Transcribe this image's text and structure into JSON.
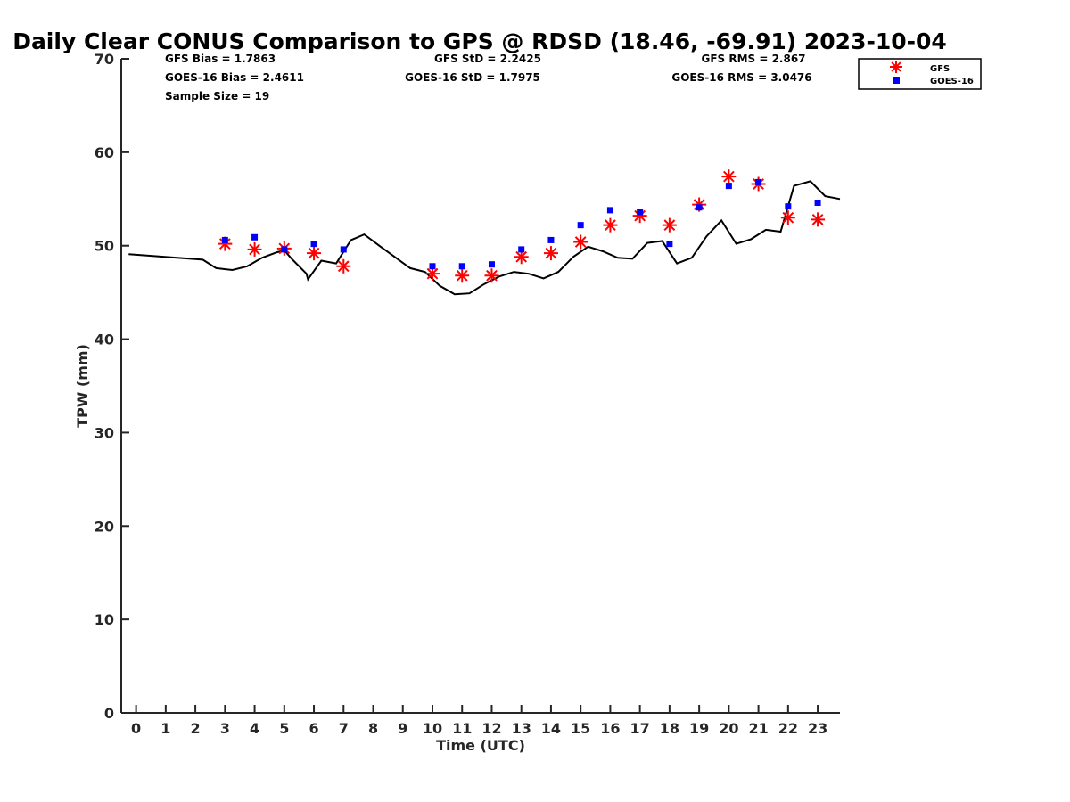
{
  "chart_data": {
    "type": "scatter",
    "title": "Daily Clear CONUS Comparison to GPS @ RDSD (18.46, -69.91) 2023-10-04",
    "xlabel": "Time (UTC)",
    "ylabel": "TPW (mm)",
    "xlim": [
      -0.5,
      23.75
    ],
    "ylim": [
      0,
      70
    ],
    "x_ticks": [
      0,
      1,
      2,
      3,
      4,
      5,
      6,
      7,
      8,
      9,
      10,
      11,
      12,
      13,
      14,
      15,
      16,
      17,
      18,
      19,
      20,
      21,
      22,
      23
    ],
    "y_ticks": [
      0,
      10,
      20,
      30,
      40,
      50,
      60,
      70
    ],
    "grid": false,
    "legend_position": "top-right",
    "stats": {
      "gfs_bias": "GFS Bias = 1.7863",
      "goes_bias": "GOES-16 Bias = 2.4611",
      "sample_size": "Sample Size = 19",
      "gfs_std": "GFS StD = 2.2425",
      "goes_std": "GOES-16 StD = 1.7975",
      "gfs_rms": "GFS RMS = 2.867",
      "goes_rms": "GOES-16 RMS = 3.0476"
    },
    "series": [
      {
        "name": "GFS",
        "marker": "asterisk",
        "color": "#ff0000",
        "points": [
          [
            3,
            50.2
          ],
          [
            4,
            49.6
          ],
          [
            5,
            49.7
          ],
          [
            6,
            49.2
          ],
          [
            7,
            47.8
          ],
          [
            10,
            47.0
          ],
          [
            11,
            46.8
          ],
          [
            12,
            46.8
          ],
          [
            13,
            48.8
          ],
          [
            14,
            49.2
          ],
          [
            15,
            50.4
          ],
          [
            16,
            52.2
          ],
          [
            17,
            53.2
          ],
          [
            18,
            52.2
          ],
          [
            19,
            54.4
          ],
          [
            20,
            57.4
          ],
          [
            21,
            56.6
          ],
          [
            22,
            53.0
          ],
          [
            23,
            52.8
          ]
        ]
      },
      {
        "name": "GOES-16",
        "marker": "square",
        "color": "#0000ff",
        "points": [
          [
            3,
            50.6
          ],
          [
            4,
            50.9
          ],
          [
            5,
            49.6
          ],
          [
            6,
            50.2
          ],
          [
            7,
            49.6
          ],
          [
            10,
            47.8
          ],
          [
            11,
            47.8
          ],
          [
            12,
            48.0
          ],
          [
            13,
            49.6
          ],
          [
            14,
            50.6
          ],
          [
            15,
            52.2
          ],
          [
            16,
            53.8
          ],
          [
            17,
            53.6
          ],
          [
            18,
            50.2
          ],
          [
            19,
            54.1
          ],
          [
            20,
            56.4
          ],
          [
            21,
            56.8
          ],
          [
            22,
            54.2
          ],
          [
            23,
            54.6
          ]
        ]
      },
      {
        "marker": "line",
        "color": "#000000",
        "points": [
          [
            -0.25,
            49.1
          ],
          [
            2.25,
            48.5
          ],
          [
            2.7,
            47.6
          ],
          [
            3.25,
            47.4
          ],
          [
            3.75,
            47.8
          ],
          [
            4.25,
            48.7
          ],
          [
            4.75,
            49.3
          ],
          [
            5.0,
            49.5
          ],
          [
            5.25,
            48.6
          ],
          [
            5.75,
            47.0
          ],
          [
            5.8,
            46.4
          ],
          [
            6.25,
            48.4
          ],
          [
            6.75,
            48.1
          ],
          [
            7.25,
            50.6
          ],
          [
            7.7,
            51.2
          ],
          [
            8.25,
            49.9
          ],
          [
            9.25,
            47.6
          ],
          [
            9.75,
            47.2
          ],
          [
            10.25,
            45.7
          ],
          [
            10.75,
            44.8
          ],
          [
            11.25,
            44.9
          ],
          [
            11.75,
            45.9
          ],
          [
            12.25,
            46.7
          ],
          [
            12.75,
            47.2
          ],
          [
            13.25,
            47.0
          ],
          [
            13.75,
            46.5
          ],
          [
            14.25,
            47.2
          ],
          [
            14.75,
            48.8
          ],
          [
            15.25,
            49.9
          ],
          [
            15.75,
            49.4
          ],
          [
            16.25,
            48.7
          ],
          [
            16.75,
            48.6
          ],
          [
            17.25,
            50.3
          ],
          [
            17.75,
            50.5
          ],
          [
            18.25,
            48.1
          ],
          [
            18.75,
            48.7
          ],
          [
            19.25,
            51.0
          ],
          [
            19.75,
            52.7
          ],
          [
            20.25,
            50.2
          ],
          [
            20.75,
            50.7
          ],
          [
            21.25,
            51.7
          ],
          [
            21.75,
            51.5
          ],
          [
            22.2,
            56.4
          ],
          [
            22.75,
            56.9
          ],
          [
            23.25,
            55.3
          ],
          [
            23.75,
            55.0
          ]
        ]
      }
    ]
  }
}
